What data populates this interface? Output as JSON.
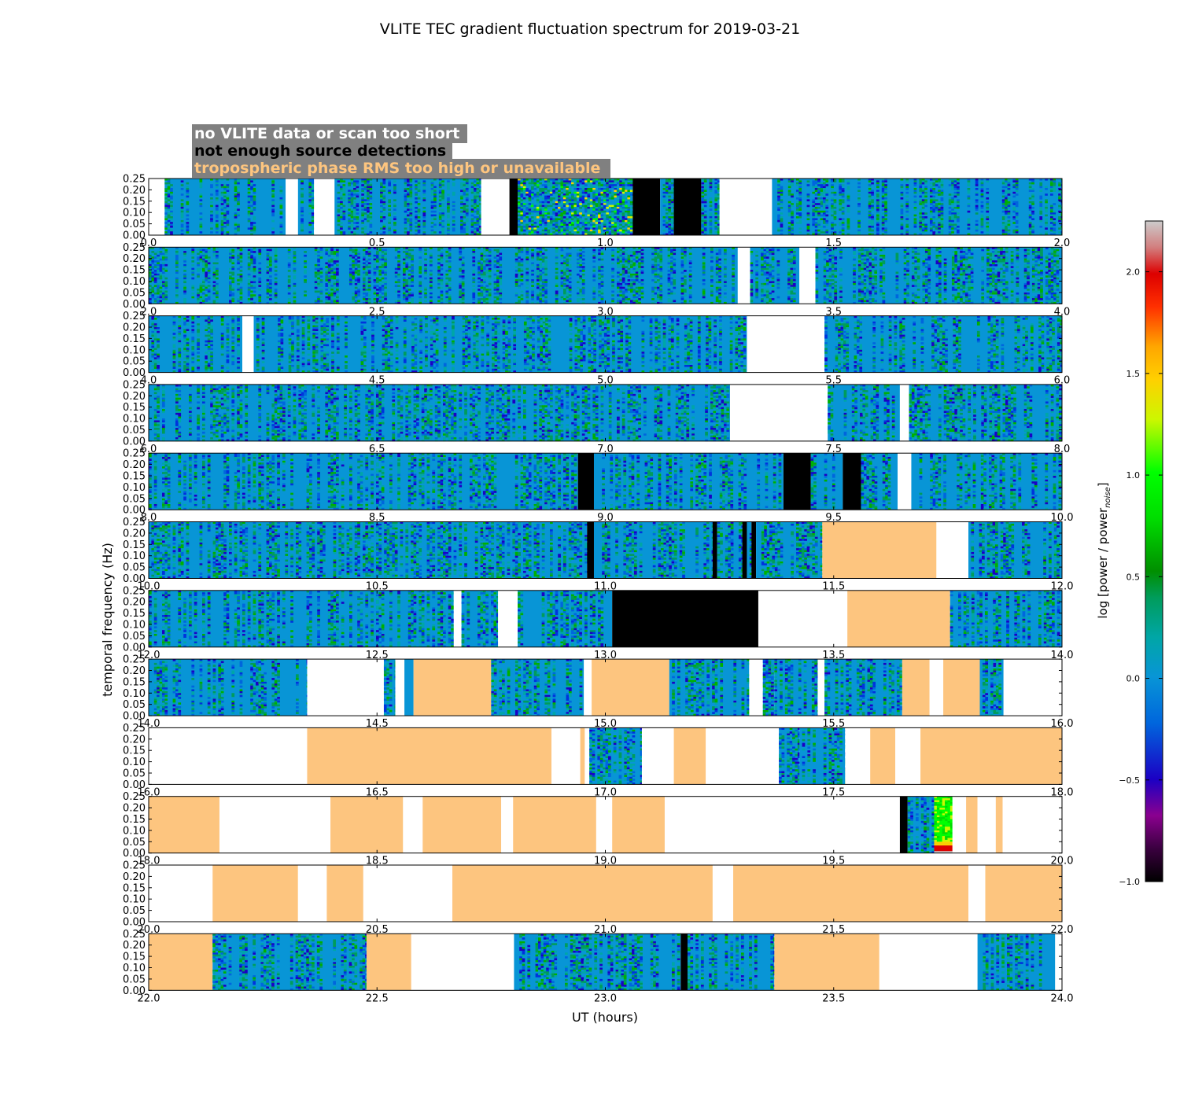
{
  "chart_data": {
    "type": "heatmap",
    "title": "VLITE TEC gradient fluctuation spectrum for 2019-03-21",
    "xlabel": "UT (hours)",
    "ylabel": "temporal frequency (Hz)",
    "colorbar_label": "log [power / power",
    "colorbar_label_sub": "noise",
    "colorbar_label_end": "]",
    "colorbar_range": [
      -1.0,
      2.25
    ],
    "colorbar_ticks": [
      "−1.0",
      "−0.5",
      "0.0",
      "0.5",
      "1.0",
      "1.5",
      "2.0"
    ],
    "colorbar_tick_values": [
      -1.0,
      -0.5,
      0.0,
      0.5,
      1.0,
      1.5,
      2.0
    ],
    "ylim": [
      0.0,
      0.25
    ],
    "y_ticks": [
      "0.00",
      "0.05",
      "0.10",
      "0.15",
      "0.20",
      "0.25"
    ],
    "y_tick_values": [
      0.0,
      0.05,
      0.1,
      0.15,
      0.2,
      0.25
    ],
    "legend": {
      "placement": "top-left",
      "entries": [
        {
          "label": "no VLITE data or scan too short",
          "color": "#ffffff"
        },
        {
          "label": "not enough source detections",
          "color": "#000000"
        },
        {
          "label": "tropospheric phase RMS too high or unavailable",
          "color": "#fdc57f"
        }
      ]
    },
    "colors": {
      "no_data": "#ffffff",
      "few_detections": "#000000",
      "tropo": "#fdc57f",
      "baseline": "#0895d6",
      "legend_bg": "#808080"
    },
    "panels": [
      {
        "xlim": [
          0.0,
          2.0
        ],
        "x_ticks": [
          "0.0",
          "0.5",
          "1.0",
          "1.5",
          "2.0"
        ],
        "segments": [
          [
            0.0,
            0.035,
            "none"
          ],
          [
            0.035,
            0.3,
            "data"
          ],
          [
            0.3,
            0.327,
            "none"
          ],
          [
            0.327,
            0.362,
            "data"
          ],
          [
            0.362,
            0.407,
            "none"
          ],
          [
            0.407,
            0.728,
            "data"
          ],
          [
            0.728,
            0.79,
            "none"
          ],
          [
            0.79,
            0.808,
            "black"
          ],
          [
            0.808,
            1.06,
            "active"
          ],
          [
            1.06,
            1.12,
            "black"
          ],
          [
            1.12,
            1.15,
            "data"
          ],
          [
            1.15,
            1.21,
            "black"
          ],
          [
            1.21,
            1.25,
            "data"
          ],
          [
            1.25,
            1.365,
            "none"
          ],
          [
            1.365,
            2.0,
            "data"
          ]
        ]
      },
      {
        "xlim": [
          2.0,
          4.0
        ],
        "x_ticks": [
          "2.0",
          "2.5",
          "3.0",
          "3.5",
          "4.0"
        ],
        "segments": [
          [
            2.0,
            3.29,
            "data"
          ],
          [
            3.29,
            3.317,
            "none"
          ],
          [
            3.317,
            3.425,
            "data"
          ],
          [
            3.425,
            3.46,
            "none"
          ],
          [
            3.46,
            4.0,
            "data"
          ]
        ]
      },
      {
        "xlim": [
          4.0,
          6.0
        ],
        "x_ticks": [
          "4.0",
          "4.5",
          "5.0",
          "5.5",
          "6.0"
        ],
        "segments": [
          [
            4.0,
            4.205,
            "data"
          ],
          [
            4.205,
            4.23,
            "none"
          ],
          [
            4.23,
            5.31,
            "data"
          ],
          [
            5.31,
            5.48,
            "none"
          ],
          [
            5.48,
            6.0,
            "data"
          ]
        ]
      },
      {
        "xlim": [
          6.0,
          8.0
        ],
        "x_ticks": [
          "6.0",
          "6.5",
          "7.0",
          "7.5",
          "8.0"
        ],
        "segments": [
          [
            6.0,
            7.273,
            "data"
          ],
          [
            7.273,
            7.487,
            "none"
          ],
          [
            7.487,
            7.645,
            "data"
          ],
          [
            7.645,
            7.665,
            "none"
          ],
          [
            7.665,
            8.0,
            "data"
          ]
        ]
      },
      {
        "xlim": [
          8.0,
          10.0
        ],
        "x_ticks": [
          "8.0",
          "8.5",
          "9.0",
          "9.5",
          "10.0"
        ],
        "segments": [
          [
            8.0,
            8.94,
            "data"
          ],
          [
            8.94,
            8.975,
            "black"
          ],
          [
            8.975,
            9.39,
            "data"
          ],
          [
            9.39,
            9.45,
            "black"
          ],
          [
            9.45,
            9.52,
            "data"
          ],
          [
            9.52,
            9.56,
            "black"
          ],
          [
            9.56,
            9.64,
            "data"
          ],
          [
            9.64,
            9.67,
            "none"
          ],
          [
            9.67,
            10.0,
            "data"
          ]
        ]
      },
      {
        "xlim": [
          10.0,
          12.0
        ],
        "x_ticks": [
          "10.0",
          "10.5",
          "11.0",
          "11.5",
          "12.0"
        ],
        "segments": [
          [
            10.0,
            10.96,
            "data"
          ],
          [
            10.96,
            10.975,
            "black"
          ],
          [
            10.975,
            11.235,
            "data"
          ],
          [
            11.235,
            11.245,
            "black"
          ],
          [
            11.245,
            11.3,
            "data"
          ],
          [
            11.3,
            11.31,
            "black"
          ],
          [
            11.31,
            11.32,
            "data"
          ],
          [
            11.32,
            11.33,
            "black"
          ],
          [
            11.33,
            11.475,
            "data"
          ],
          [
            11.475,
            11.725,
            "tropo"
          ],
          [
            11.725,
            11.795,
            "none"
          ],
          [
            11.795,
            12.0,
            "data"
          ]
        ]
      },
      {
        "xlim": [
          12.0,
          14.0
        ],
        "x_ticks": [
          "12.0",
          "12.5",
          "13.0",
          "13.5",
          "14.0"
        ],
        "segments": [
          [
            12.0,
            12.668,
            "data"
          ],
          [
            12.668,
            12.685,
            "none"
          ],
          [
            12.685,
            12.765,
            "data"
          ],
          [
            12.765,
            12.808,
            "none"
          ],
          [
            12.808,
            13.015,
            "data"
          ],
          [
            13.015,
            13.335,
            "black"
          ],
          [
            13.335,
            13.53,
            "none"
          ],
          [
            13.53,
            13.755,
            "tropo"
          ],
          [
            13.755,
            14.0,
            "data"
          ]
        ]
      },
      {
        "xlim": [
          14.0,
          16.0
        ],
        "x_ticks": [
          "14.0",
          "14.5",
          "15.0",
          "15.5",
          "16.0"
        ],
        "segments": [
          [
            14.0,
            14.347,
            "data"
          ],
          [
            14.347,
            14.515,
            "none"
          ],
          [
            14.515,
            14.54,
            "data"
          ],
          [
            14.54,
            14.56,
            "none"
          ],
          [
            14.56,
            14.58,
            "data"
          ],
          [
            14.58,
            14.75,
            "tropo"
          ],
          [
            14.75,
            14.953,
            "data"
          ],
          [
            14.953,
            14.97,
            "none"
          ],
          [
            14.97,
            15.14,
            "tropo"
          ],
          [
            15.14,
            15.315,
            "data"
          ],
          [
            15.315,
            15.345,
            "none"
          ],
          [
            15.345,
            15.37,
            "data"
          ],
          [
            15.37,
            15.465,
            "data"
          ],
          [
            15.465,
            15.48,
            "none"
          ],
          [
            15.48,
            15.65,
            "data"
          ],
          [
            15.65,
            15.71,
            "tropo"
          ],
          [
            15.71,
            15.74,
            "none"
          ],
          [
            15.74,
            15.82,
            "tropo"
          ],
          [
            15.82,
            15.872,
            "data"
          ],
          [
            15.872,
            16.0,
            "none"
          ]
        ]
      },
      {
        "xlim": [
          16.0,
          18.0
        ],
        "x_ticks": [
          "16.0",
          "16.5",
          "17.0",
          "17.5",
          "18.0"
        ],
        "segments": [
          [
            16.0,
            16.347,
            "none"
          ],
          [
            16.347,
            16.882,
            "tropo"
          ],
          [
            16.882,
            16.945,
            "none"
          ],
          [
            16.945,
            16.955,
            "tropo"
          ],
          [
            16.955,
            16.965,
            "none"
          ],
          [
            16.965,
            17.08,
            "data"
          ],
          [
            17.08,
            17.15,
            "none"
          ],
          [
            17.15,
            17.22,
            "tropo"
          ],
          [
            17.22,
            17.38,
            "none"
          ],
          [
            17.38,
            17.425,
            "data"
          ],
          [
            17.425,
            17.525,
            "data"
          ],
          [
            17.525,
            17.58,
            "none"
          ],
          [
            17.58,
            17.635,
            "tropo"
          ],
          [
            17.635,
            17.69,
            "none"
          ],
          [
            17.69,
            18.0,
            "tropo"
          ]
        ]
      },
      {
        "xlim": [
          18.0,
          20.0
        ],
        "x_ticks": [
          "18.0",
          "18.5",
          "19.0",
          "19.5",
          "20.0"
        ],
        "segments": [
          [
            18.0,
            18.155,
            "tropo"
          ],
          [
            18.155,
            18.398,
            "none"
          ],
          [
            18.398,
            18.557,
            "tropo"
          ],
          [
            18.557,
            18.6,
            "none"
          ],
          [
            18.6,
            18.772,
            "tropo"
          ],
          [
            18.772,
            18.798,
            "none"
          ],
          [
            18.798,
            18.98,
            "tropo"
          ],
          [
            18.98,
            19.015,
            "none"
          ],
          [
            19.015,
            19.13,
            "tropo"
          ],
          [
            19.13,
            19.645,
            "none"
          ],
          [
            19.645,
            19.662,
            "black"
          ],
          [
            19.662,
            19.72,
            "data"
          ],
          [
            19.72,
            19.76,
            "flare"
          ],
          [
            19.76,
            19.79,
            "none"
          ],
          [
            19.79,
            19.815,
            "tropo"
          ],
          [
            19.815,
            19.855,
            "none"
          ],
          [
            19.855,
            19.87,
            "tropo"
          ],
          [
            19.87,
            20.0,
            "none"
          ]
        ]
      },
      {
        "xlim": [
          20.0,
          22.0
        ],
        "x_ticks": [
          "20.0",
          "20.5",
          "21.0",
          "21.5",
          "22.0"
        ],
        "segments": [
          [
            20.0,
            20.14,
            "none"
          ],
          [
            20.14,
            20.327,
            "tropo"
          ],
          [
            20.327,
            20.39,
            "none"
          ],
          [
            20.39,
            20.47,
            "tropo"
          ],
          [
            20.47,
            20.665,
            "none"
          ],
          [
            20.665,
            21.235,
            "tropo"
          ],
          [
            21.235,
            21.28,
            "none"
          ],
          [
            21.28,
            21.795,
            "tropo"
          ],
          [
            21.795,
            21.832,
            "none"
          ],
          [
            21.832,
            22.0,
            "tropo"
          ]
        ]
      },
      {
        "xlim": [
          22.0,
          24.0
        ],
        "x_ticks": [
          "22.0",
          "22.5",
          "23.0",
          "23.5",
          "24.0"
        ],
        "segments": [
          [
            22.0,
            22.14,
            "tropo"
          ],
          [
            22.14,
            22.477,
            "data"
          ],
          [
            22.477,
            22.575,
            "tropo"
          ],
          [
            22.575,
            22.8,
            "none"
          ],
          [
            22.8,
            23.165,
            "data"
          ],
          [
            23.165,
            23.18,
            "black"
          ],
          [
            23.18,
            23.37,
            "data"
          ],
          [
            23.37,
            23.6,
            "tropo"
          ],
          [
            23.6,
            23.815,
            "none"
          ],
          [
            23.815,
            23.985,
            "data"
          ],
          [
            23.985,
            24.0,
            "none"
          ]
        ]
      }
    ]
  }
}
